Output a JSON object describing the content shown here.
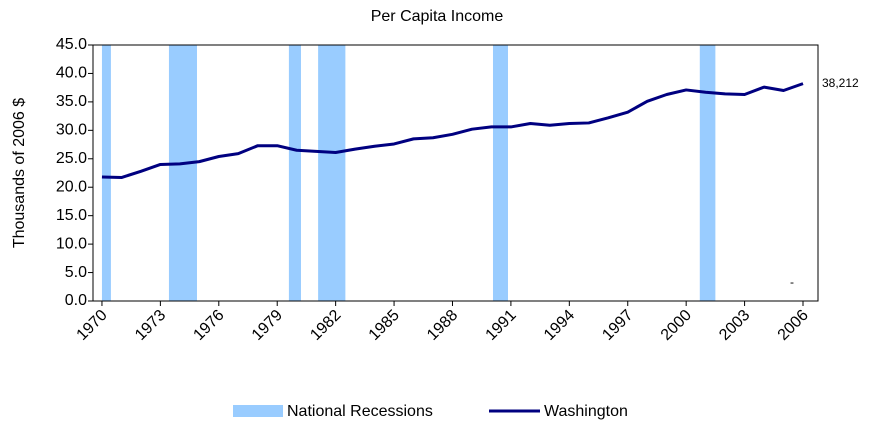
{
  "chart_data": {
    "type": "line",
    "title": "Per Capita Income",
    "y_label": "Thousands of 2006 $",
    "x": [
      1970,
      1971,
      1972,
      1973,
      1974,
      1975,
      1976,
      1977,
      1978,
      1979,
      1980,
      1981,
      1982,
      1983,
      1984,
      1985,
      1986,
      1987,
      1988,
      1989,
      1990,
      1991,
      1992,
      1993,
      1994,
      1995,
      1996,
      1997,
      1998,
      1999,
      2000,
      2001,
      2002,
      2003,
      2004,
      2005,
      2006
    ],
    "series": [
      {
        "name": "Washington",
        "color": "#000080",
        "values": [
          21.8,
          21.7,
          22.8,
          24.0,
          24.1,
          24.5,
          25.4,
          25.9,
          27.3,
          27.3,
          26.5,
          26.3,
          26.1,
          26.7,
          27.2,
          27.6,
          28.5,
          28.7,
          29.3,
          30.2,
          30.6,
          30.6,
          31.2,
          30.9,
          31.2,
          31.3,
          32.2,
          33.2,
          35.1,
          36.3,
          37.1,
          36.7,
          36.4,
          36.3,
          37.6,
          37.0,
          38.212
        ],
        "value_labels": {
          "36": "38,212"
        }
      }
    ],
    "recessions": {
      "name": "National Recessions",
      "color": "#99ccff",
      "ranges": [
        [
          1970.0,
          1970.46
        ],
        [
          1973.44,
          1974.88
        ],
        [
          1979.6,
          1980.22
        ],
        [
          1981.1,
          1982.5
        ],
        [
          1990.08,
          1990.85
        ],
        [
          2000.7,
          2001.5
        ]
      ]
    },
    "annotation": "-",
    "xlim": [
      1969.54,
      2006.77
    ],
    "xticks": [
      1970,
      1973,
      1976,
      1979,
      1982,
      1985,
      1988,
      1991,
      1994,
      1997,
      2000,
      2003,
      2006
    ],
    "ylim": [
      0,
      45
    ],
    "yticks": [
      {
        "value": 0,
        "label": "0.0"
      },
      {
        "value": 5,
        "label": "5.0"
      },
      {
        "value": 10,
        "label": "10.0"
      },
      {
        "value": 15,
        "label": "15.0"
      },
      {
        "value": 20,
        "label": "20.0"
      },
      {
        "value": 25,
        "label": "25.0"
      },
      {
        "value": 30,
        "label": "30.0"
      },
      {
        "value": 35,
        "label": "35.0"
      },
      {
        "value": 40,
        "label": "40.0"
      },
      {
        "value": 45,
        "label": "45.0"
      }
    ],
    "legend": "bottom"
  }
}
